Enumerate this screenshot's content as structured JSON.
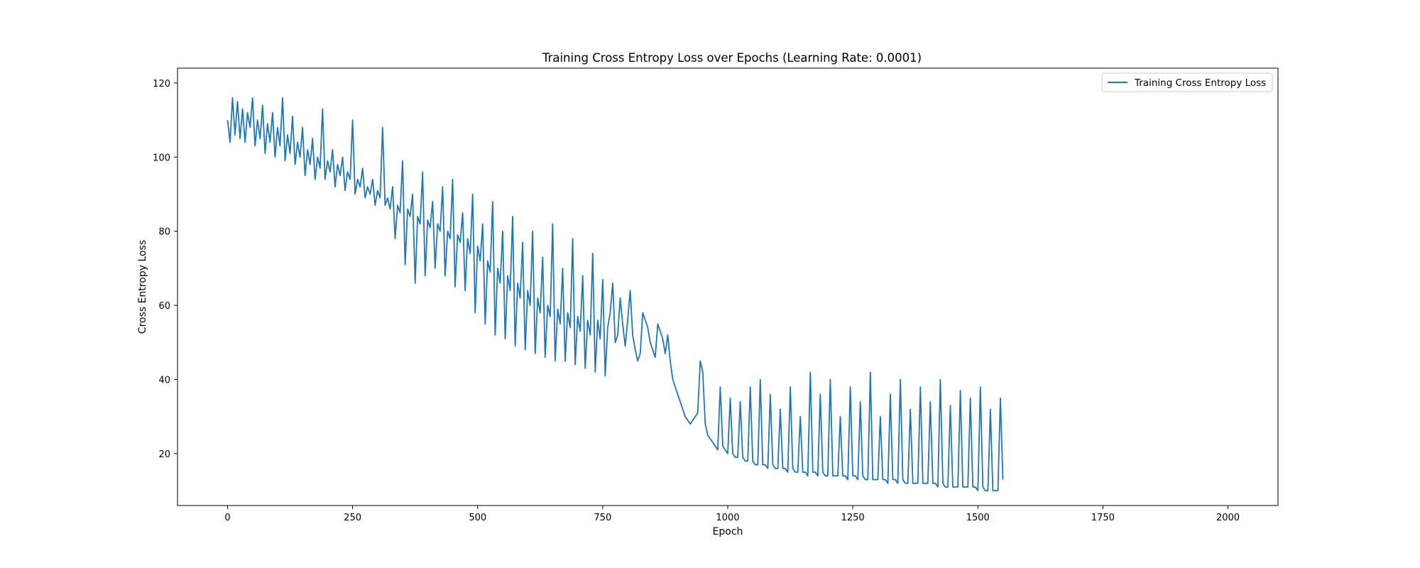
{
  "chart_data": {
    "type": "line",
    "title": "Training Cross Entropy Loss over Epochs (Learning Rate: 0.0001)",
    "xlabel": "Epoch",
    "ylabel": "Cross Entropy Loss",
    "xlim": [
      -100,
      2100
    ],
    "ylim": [
      6,
      124
    ],
    "xticks": [
      0,
      250,
      500,
      750,
      1000,
      1250,
      1500,
      1750,
      2000
    ],
    "yticks": [
      20,
      40,
      60,
      80,
      100,
      120
    ],
    "grid": false,
    "legend_position": "top-right",
    "series": [
      {
        "name": "Training Cross Entropy Loss",
        "color": "#1f77b4",
        "x_start": 0,
        "x_step": 5,
        "y": [
          110,
          104,
          116,
          106,
          115,
          105,
          113,
          104,
          112,
          108,
          116,
          103,
          110,
          105,
          114,
          101,
          109,
          104,
          112,
          100,
          108,
          103,
          116,
          99,
          106,
          101,
          111,
          98,
          104,
          100,
          108,
          95,
          102,
          98,
          105,
          94,
          100,
          97,
          113,
          94,
          99,
          96,
          102,
          92,
          98,
          95,
          100,
          91,
          96,
          94,
          110,
          90,
          94,
          92,
          97,
          89,
          92,
          90,
          94,
          87,
          91,
          89,
          108,
          87,
          89,
          86,
          92,
          78,
          87,
          85,
          99,
          71,
          86,
          84,
          90,
          66,
          84,
          82,
          96,
          68,
          83,
          81,
          88,
          70,
          82,
          80,
          92,
          68,
          80,
          78,
          94,
          65,
          79,
          77,
          85,
          64,
          78,
          74,
          90,
          58,
          76,
          72,
          82,
          55,
          72,
          69,
          88,
          52,
          70,
          66,
          80,
          51,
          68,
          64,
          84,
          49,
          66,
          62,
          77,
          48,
          64,
          60,
          80,
          47,
          62,
          58,
          73,
          46,
          60,
          57,
          82,
          45,
          59,
          55,
          70,
          45,
          58,
          54,
          78,
          44,
          57,
          53,
          68,
          43,
          56,
          52,
          74,
          42,
          56,
          51,
          67,
          41,
          54,
          58,
          66,
          50,
          52,
          62,
          55,
          49,
          56,
          64,
          52,
          48,
          45,
          47,
          58,
          56,
          54,
          50,
          48,
          46,
          55,
          53,
          51,
          47,
          52,
          45,
          40,
          38,
          36,
          34,
          32,
          30,
          29,
          28,
          29,
          30,
          31,
          45,
          42,
          28,
          25,
          24,
          23,
          22,
          21,
          38,
          22,
          21,
          20,
          35,
          20,
          19,
          19,
          34,
          19,
          18,
          18,
          38,
          18,
          17,
          17,
          40,
          17,
          17,
          16,
          36,
          17,
          16,
          16,
          32,
          16,
          16,
          15,
          38,
          16,
          15,
          15,
          30,
          15,
          15,
          14,
          42,
          15,
          15,
          14,
          36,
          15,
          14,
          14,
          40,
          14,
          14,
          14,
          30,
          14,
          14,
          13,
          38,
          14,
          14,
          13,
          34,
          14,
          13,
          13,
          42,
          13,
          13,
          13,
          30,
          13,
          13,
          12,
          36,
          13,
          13,
          12,
          40,
          13,
          12,
          12,
          32,
          12,
          12,
          12,
          38,
          12,
          12,
          12,
          34,
          12,
          12,
          11,
          40,
          12,
          11,
          11,
          33,
          11,
          11,
          11,
          37,
          11,
          11,
          11,
          35,
          11,
          11,
          10,
          38,
          11,
          10,
          10,
          32,
          10,
          10,
          10,
          35,
          13
        ]
      }
    ]
  }
}
